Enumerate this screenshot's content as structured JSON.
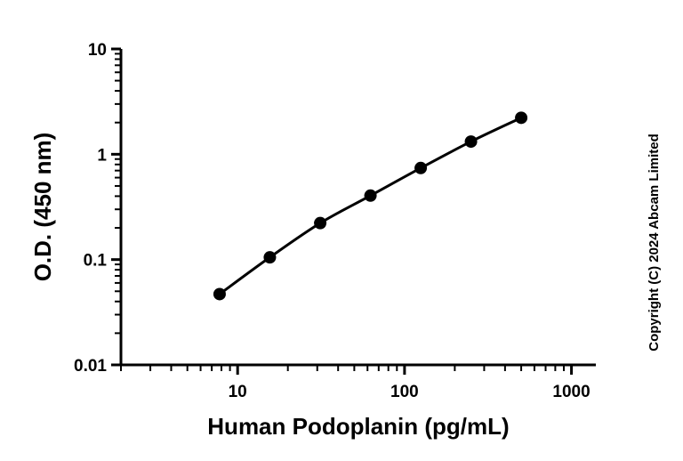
{
  "chart_data": {
    "type": "scatter",
    "xlabel": "Human Podoplanin (pg/mL)",
    "ylabel": "O.D. (450 nm)",
    "x_scale": "log",
    "y_scale": "log",
    "xlim": [
      2,
      1400
    ],
    "ylim": [
      0.01,
      10
    ],
    "x_ticks": [
      10,
      100,
      1000
    ],
    "x_tick_labels": [
      "10",
      "100",
      "1000"
    ],
    "y_ticks": [
      0.01,
      0.1,
      1,
      10
    ],
    "y_tick_labels": [
      "0.01",
      "0.1",
      "1",
      "10"
    ],
    "grid": false,
    "fit_line": true,
    "series": [
      {
        "x": [
          7.8,
          15.6,
          31.25,
          62.5,
          125,
          250,
          500
        ],
        "y": [
          0.047,
          0.105,
          0.222,
          0.405,
          0.74,
          1.32,
          2.22
        ]
      }
    ]
  },
  "copyright": "Copyright (C) 2024 Abcam Limited"
}
